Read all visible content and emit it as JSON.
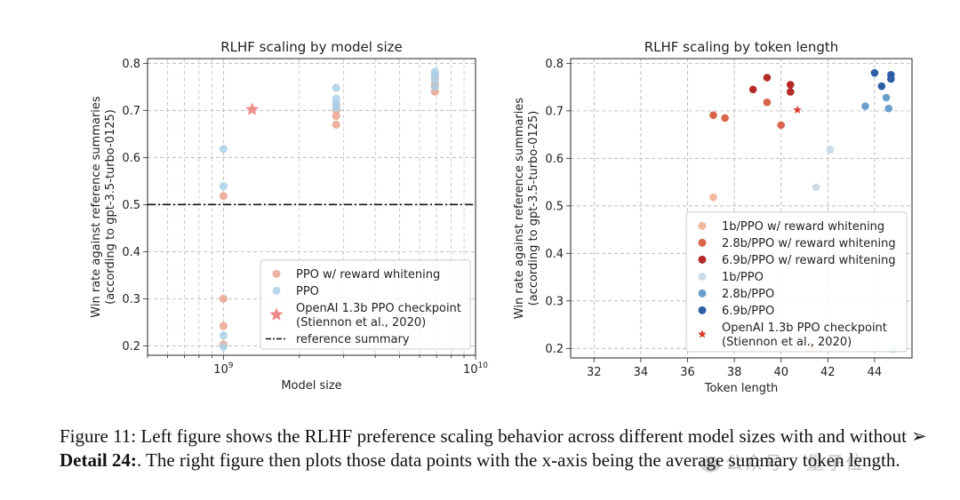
{
  "chart_data": [
    {
      "type": "scatter",
      "title": "RLHF scaling by model size",
      "xlabel": "Model size",
      "ylabel_lines": [
        "Win rate against reference summaries",
        "(according to gpt-3.5-turbo-0125)"
      ],
      "xscale": "log",
      "xlim": [
        500000000,
        10000000000
      ],
      "ylim": [
        0.18,
        0.81
      ],
      "xticks": [
        {
          "value": 1000000000,
          "base": "10",
          "exp": "9"
        },
        {
          "value": 10000000000,
          "base": "10",
          "exp": "10"
        }
      ],
      "yticks": [
        0.2,
        0.3,
        0.4,
        0.5,
        0.6,
        0.7,
        0.8
      ],
      "grid": true,
      "legend_position": "bottom-right",
      "series": [
        {
          "name": "PPO w/ reward whitening",
          "color": "#eba58f",
          "marker": "circle",
          "points": [
            [
              1000000000,
              0.518
            ],
            [
              1000000000,
              0.3
            ],
            [
              1000000000,
              0.242
            ],
            [
              1000000000,
              0.203
            ],
            [
              2800000000,
              0.67
            ],
            [
              2800000000,
              0.688
            ],
            [
              2800000000,
              0.7
            ],
            [
              2800000000,
              0.71
            ],
            [
              6900000000,
              0.74
            ],
            [
              6900000000,
              0.752
            ],
            [
              6900000000,
              0.755
            ],
            [
              6900000000,
              0.77
            ]
          ]
        },
        {
          "name": "PPO",
          "color": "#acd0e6",
          "marker": "circle",
          "points": [
            [
              1000000000,
              0.618
            ],
            [
              1000000000,
              0.539
            ],
            [
              1000000000,
              0.222
            ],
            [
              1000000000,
              0.198
            ],
            [
              2800000000,
              0.748
            ],
            [
              2800000000,
              0.725
            ],
            [
              2800000000,
              0.715
            ],
            [
              2800000000,
              0.705
            ],
            [
              6900000000,
              0.782
            ],
            [
              6900000000,
              0.776
            ],
            [
              6900000000,
              0.765
            ],
            [
              6900000000,
              0.75
            ]
          ]
        },
        {
          "name": "OpenAI 1.3b PPO checkpoint",
          "name_line2": "(Stiennon et al., 2020)",
          "color": "#ee8a88",
          "marker": "star",
          "points": [
            [
              1300000000,
              0.702
            ]
          ]
        }
      ],
      "reference_line": {
        "name": "reference summary",
        "y": 0.5,
        "style": "dashdot",
        "color": "#111111"
      }
    },
    {
      "type": "scatter",
      "title": "RLHF scaling by token length",
      "xlabel": "Token length",
      "ylabel_lines": [
        "Win rate against reference summaries",
        "(according to gpt-3.5-turbo-0125)"
      ],
      "xlim": [
        31,
        45.6
      ],
      "ylim": [
        0.18,
        0.81
      ],
      "xticks": [
        32,
        34,
        36,
        38,
        40,
        42,
        44
      ],
      "yticks": [
        0.2,
        0.3,
        0.4,
        0.5,
        0.6,
        0.7,
        0.8
      ],
      "grid": true,
      "legend_position": "bottom-right",
      "series": [
        {
          "name": "1b/PPO w/ reward whitening",
          "color": "#f0b89e",
          "marker": "circle",
          "points": [
            [
              37.1,
              0.518
            ],
            [
              41.4,
              0.242
            ],
            [
              41.3,
              0.203
            ]
          ]
        },
        {
          "name": "2.8b/PPO w/ reward whitening",
          "color": "#d9654c",
          "marker": "circle",
          "points": [
            [
              37.1,
              0.691
            ],
            [
              37.6,
              0.685
            ],
            [
              39.4,
              0.718
            ],
            [
              40.0,
              0.67
            ]
          ]
        },
        {
          "name": "6.9b/PPO w/ reward whitening",
          "color": "#b52a29",
          "marker": "circle",
          "points": [
            [
              38.8,
              0.745
            ],
            [
              39.4,
              0.77
            ],
            [
              40.4,
              0.755
            ],
            [
              40.4,
              0.74
            ]
          ]
        },
        {
          "name": "1b/PPO",
          "color": "#c8dcec",
          "marker": "circle",
          "points": [
            [
              42.1,
              0.618
            ],
            [
              41.5,
              0.539
            ],
            [
              40.9,
              0.222
            ],
            [
              44.8,
              0.198
            ]
          ]
        },
        {
          "name": "2.8b/PPO",
          "color": "#6a9fcd",
          "marker": "circle",
          "points": [
            [
              43.6,
              0.71
            ],
            [
              44.5,
              0.728
            ],
            [
              44.6,
              0.705
            ]
          ]
        },
        {
          "name": "6.9b/PPO",
          "color": "#2f5ea8",
          "marker": "circle",
          "points": [
            [
              44.0,
              0.78
            ],
            [
              44.3,
              0.752
            ],
            [
              44.7,
              0.776
            ],
            [
              44.7,
              0.767
            ]
          ]
        },
        {
          "name": "OpenAI 1.3b PPO checkpoint",
          "name_line2": "(Stiennon et al., 2020)",
          "color": "#d93a2b",
          "marker": "star",
          "points": [
            [
              40.7,
              0.702
            ]
          ]
        }
      ]
    }
  ],
  "caption": {
    "part1": "Figure 11: Left figure shows the RLHF preference scaling behavior across different model sizes with and without ",
    "arrow": "➢",
    "bold": " Detail 24:",
    "part2": ".  The right figure then plots those data points with the x-axis being the average summary token length."
  },
  "watermark": "公众号 · 量子位"
}
